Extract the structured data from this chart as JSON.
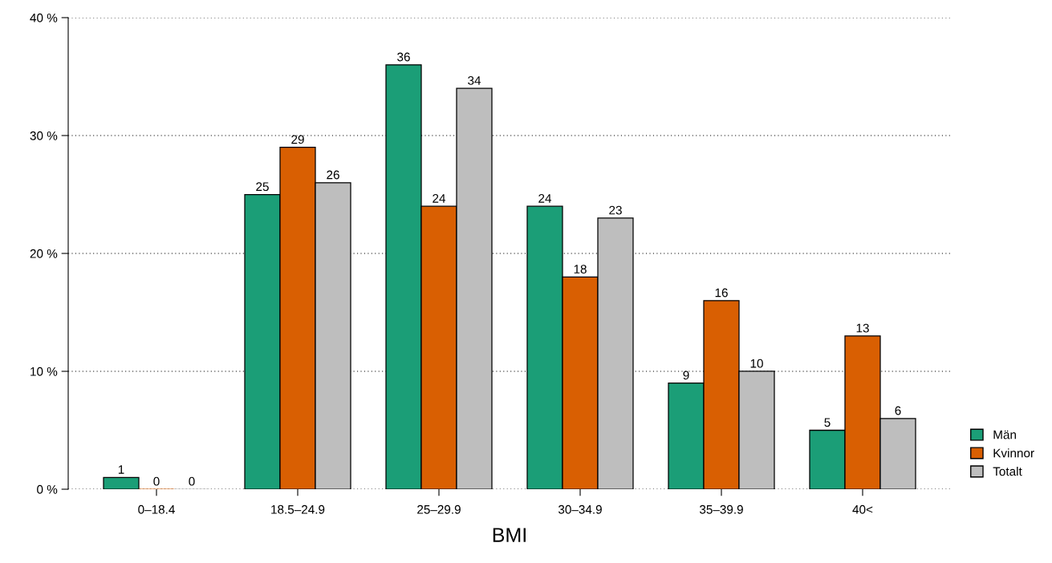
{
  "chart_data": {
    "type": "bar",
    "xlabel": "BMI",
    "categories": [
      "0–18.4",
      "18.5–24.9",
      "25–29.9",
      "30–34.9",
      "35–39.9",
      "40<"
    ],
    "series": [
      {
        "name": "Män",
        "color": "#1b9e77",
        "values": [
          1,
          25,
          36,
          24,
          9,
          5
        ]
      },
      {
        "name": "Kvinnor",
        "color": "#d95f02",
        "values": [
          0,
          29,
          24,
          18,
          16,
          13
        ]
      },
      {
        "name": "Totalt",
        "color": "#bebebe",
        "values": [
          0,
          26,
          34,
          23,
          10,
          6
        ]
      }
    ],
    "ylim": [
      0,
      40
    ],
    "yticks": [
      {
        "value": 0,
        "label": "0 %"
      },
      {
        "value": 10,
        "label": "10 %"
      },
      {
        "value": 20,
        "label": "20 %"
      },
      {
        "value": 30,
        "label": "30 %"
      },
      {
        "value": 40,
        "label": "40 %"
      }
    ],
    "grid": "y",
    "legend": "bottom right",
    "data_labels": true
  }
}
